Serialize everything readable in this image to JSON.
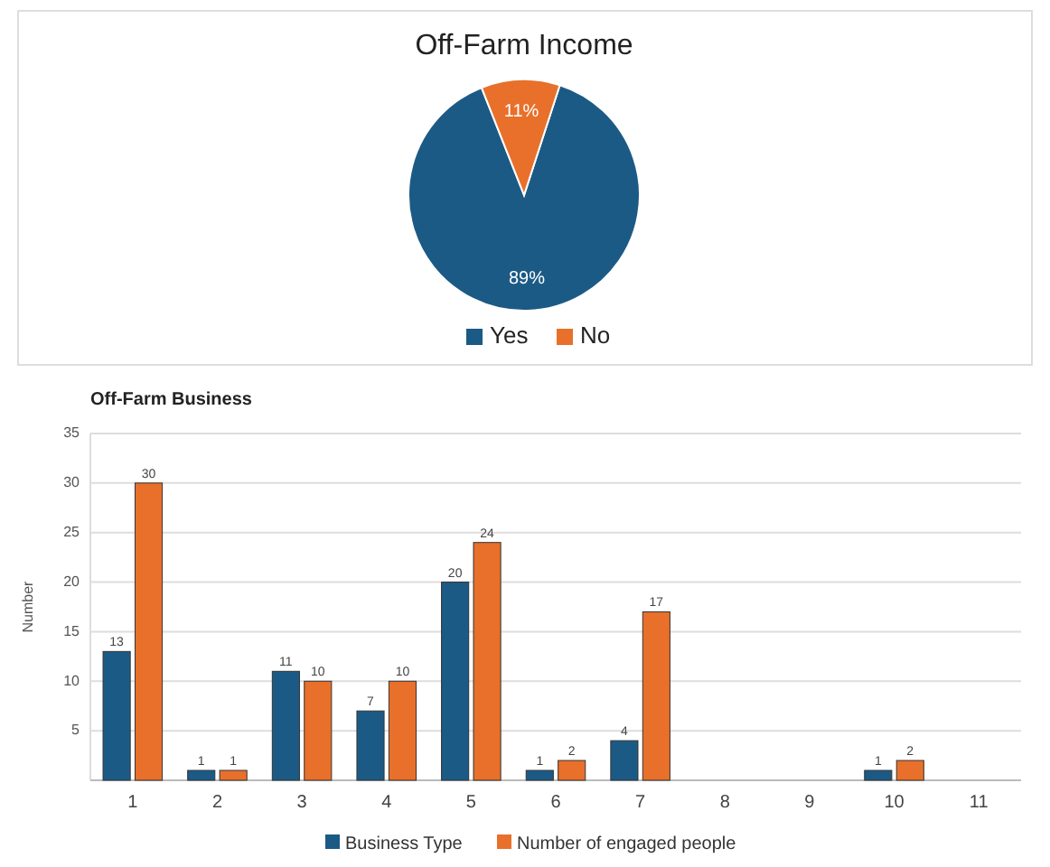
{
  "chart_data": [
    {
      "type": "pie",
      "title": "Off-Farm Income",
      "categories": [
        "Yes",
        "No"
      ],
      "values": [
        89,
        11
      ],
      "colors": [
        "#1c5a86",
        "#e8702a"
      ],
      "value_labels": [
        "89%",
        "11%"
      ],
      "legend": "bottom"
    },
    {
      "type": "bar",
      "title": "Off-Farm Business",
      "ylabel": "Number",
      "categories": [
        "1",
        "2",
        "3",
        "4",
        "5",
        "6",
        "7",
        "8",
        "9",
        "10",
        "11"
      ],
      "series": [
        {
          "name": "Business Type",
          "color": "#1c5a86",
          "values": [
            13,
            1,
            11,
            7,
            20,
            1,
            4,
            null,
            null,
            1,
            null
          ]
        },
        {
          "name": "Number of engaged people",
          "color": "#e8702a",
          "values": [
            30,
            1,
            10,
            10,
            24,
            2,
            17,
            null,
            null,
            2,
            null
          ]
        }
      ],
      "ylim": [
        0,
        35
      ],
      "yticks": [
        {
          "value": 0,
          "label": null
        },
        5,
        10,
        15,
        20,
        25,
        30,
        35
      ],
      "grid": "y",
      "data_labels": true,
      "legend": "bottom"
    }
  ]
}
